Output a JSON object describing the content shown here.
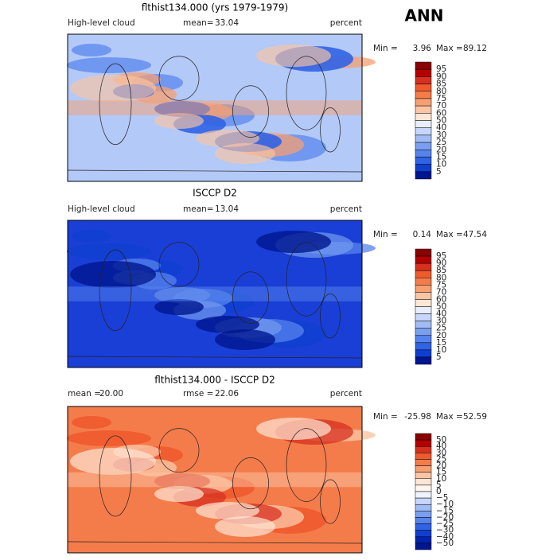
{
  "header": {
    "season": "ANN"
  },
  "panels": [
    {
      "title": "flthist134.000 (yrs 1979-1979)",
      "left_label": "High-level cloud",
      "stats": [
        {
          "label": "mean=",
          "value": "33.04"
        }
      ],
      "units": "percent",
      "min_label": "Min =",
      "min": "3.96",
      "max_label": "Max =",
      "max": "89.12",
      "colorbar": {
        "levels": [
          "95",
          "90",
          "85",
          "80",
          "75",
          "70",
          "60",
          "50",
          "40",
          "30",
          "25",
          "20",
          "15",
          "10",
          "5"
        ],
        "colors": [
          "#8b0000",
          "#b30000",
          "#d7301f",
          "#ef5a2f",
          "#f47c4b",
          "#f79f72",
          "#fbc4a3",
          "#fde6d6",
          "#e8eefc",
          "#c7d6fa",
          "#a1bcf5",
          "#7a9ff0",
          "#5683ec",
          "#3063e6",
          "#0f3fd0",
          "#00168f"
        ]
      }
    },
    {
      "title": "ISCCP D2",
      "left_label": "High-level cloud",
      "stats": [
        {
          "label": "mean=",
          "value": "13.04"
        }
      ],
      "units": "percent",
      "min_label": "Min =",
      "min": "0.14",
      "max_label": "Max =",
      "max": "47.54",
      "colorbar": {
        "levels": [
          "95",
          "90",
          "85",
          "80",
          "75",
          "70",
          "60",
          "50",
          "40",
          "30",
          "25",
          "20",
          "15",
          "10",
          "5"
        ],
        "colors": [
          "#8b0000",
          "#b30000",
          "#d7301f",
          "#ef5a2f",
          "#f47c4b",
          "#f79f72",
          "#fbc4a3",
          "#fde6d6",
          "#e8eefc",
          "#c7d6fa",
          "#a1bcf5",
          "#7a9ff0",
          "#5683ec",
          "#3063e6",
          "#0f3fd0",
          "#00168f"
        ]
      }
    },
    {
      "title": "flthist134.000 - ISCCP D2",
      "stats": [
        {
          "label": "mean =",
          "value": "20.00"
        },
        {
          "label": "rmse =",
          "value": "22.06"
        }
      ],
      "units": "percent",
      "min_label": "Min =",
      "min": "-25.98",
      "max_label": "Max =",
      "max": "52.59",
      "colorbar": {
        "levels": [
          "50",
          "40",
          "30",
          "25",
          "20",
          "15",
          "10",
          "5",
          "0",
          "−5",
          "−10",
          "−15",
          "−20",
          "−25",
          "−30",
          "−40",
          "−50"
        ],
        "colors": [
          "#8b0000",
          "#b30000",
          "#d7301f",
          "#ef5a2f",
          "#f47c4b",
          "#f79f72",
          "#fbc4a3",
          "#fde6d6",
          "#fff5ef",
          "#eef3fd",
          "#c7d6fa",
          "#a1bcf5",
          "#7a9ff0",
          "#5683ec",
          "#3063e6",
          "#0f3fd0",
          "#0022b0",
          "#00168f"
        ]
      }
    }
  ]
}
